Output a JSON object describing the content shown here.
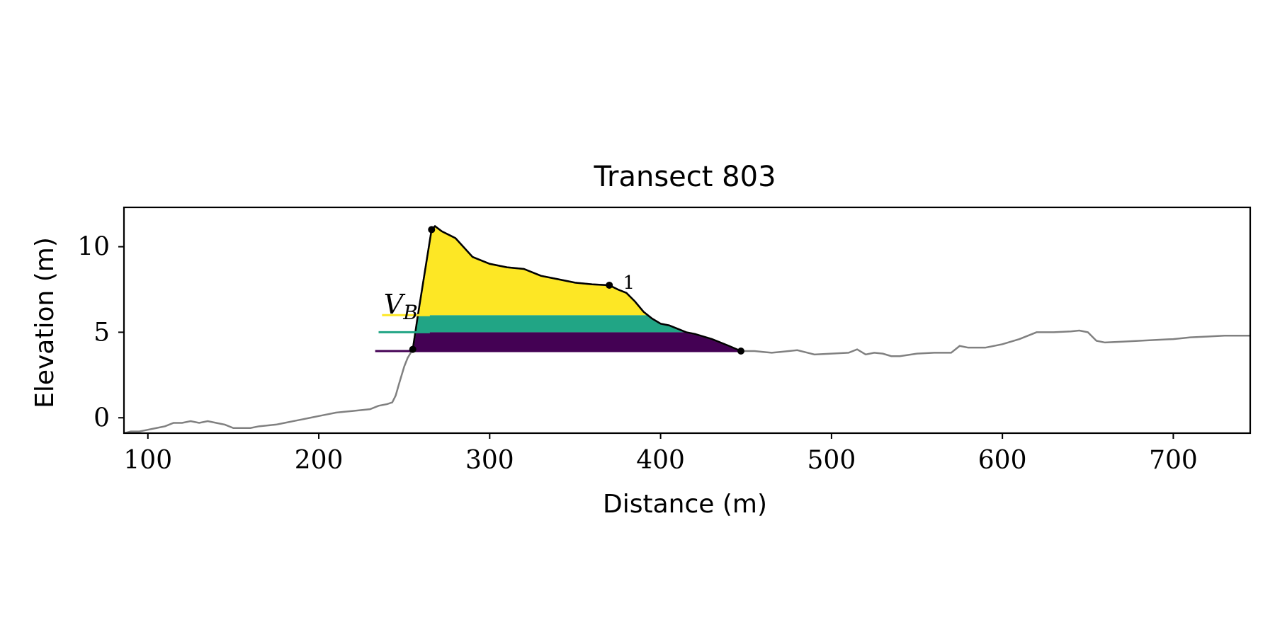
{
  "chart_data": {
    "type": "area",
    "title": "Transect 803",
    "xlabel": "Distance (m)",
    "ylabel": "Elevation (m)",
    "xlim": [
      86,
      745
    ],
    "ylim": [
      -0.9,
      12.3
    ],
    "xticks": [
      100,
      200,
      300,
      400,
      500,
      600,
      700
    ],
    "yticks": [
      0,
      5,
      10
    ],
    "grid": false,
    "legend": "none",
    "colors": {
      "profile": "#808080",
      "crest_line": "#000000",
      "band_low": "#440154",
      "band_mid": "#21a585",
      "band_high": "#fde725",
      "axis": "#000000"
    },
    "profile": {
      "x": [
        86,
        90,
        95,
        100,
        105,
        110,
        115,
        120,
        125,
        130,
        135,
        140,
        145,
        150,
        155,
        160,
        165,
        170,
        175,
        180,
        185,
        190,
        195,
        200,
        205,
        210,
        215,
        220,
        225,
        230,
        235,
        240,
        243,
        245,
        247,
        250,
        252,
        255,
        258,
        262,
        266,
        268,
        272,
        280,
        290,
        300,
        310,
        320,
        330,
        340,
        350,
        360,
        370,
        375,
        380,
        385,
        390,
        395,
        400,
        405,
        410,
        415,
        420,
        430,
        440,
        447,
        455,
        460,
        465,
        470,
        480,
        490,
        500,
        510,
        515,
        520,
        525,
        530,
        535,
        540,
        550,
        560,
        570,
        575,
        580,
        590,
        600,
        610,
        620,
        630,
        640,
        645,
        650,
        655,
        660,
        670,
        680,
        690,
        700,
        710,
        720,
        730,
        745
      ],
      "y": [
        -0.9,
        -0.8,
        -0.8,
        -0.7,
        -0.6,
        -0.5,
        -0.3,
        -0.3,
        -0.2,
        -0.3,
        -0.2,
        -0.3,
        -0.4,
        -0.6,
        -0.6,
        -0.6,
        -0.5,
        -0.45,
        -0.4,
        -0.3,
        -0.2,
        -0.1,
        0.0,
        0.1,
        0.2,
        0.3,
        0.35,
        0.4,
        0.45,
        0.5,
        0.7,
        0.8,
        0.9,
        1.3,
        2.0,
        3.0,
        3.5,
        4.0,
        6.0,
        8.5,
        11.0,
        11.2,
        10.9,
        10.5,
        9.4,
        9.0,
        8.8,
        8.7,
        8.3,
        8.1,
        7.9,
        7.8,
        7.75,
        7.5,
        7.3,
        6.8,
        6.2,
        5.8,
        5.5,
        5.4,
        5.2,
        5.0,
        4.9,
        4.6,
        4.2,
        3.9,
        3.9,
        3.85,
        3.8,
        3.85,
        3.95,
        3.7,
        3.75,
        3.8,
        4.0,
        3.7,
        3.8,
        3.75,
        3.6,
        3.6,
        3.75,
        3.8,
        3.8,
        4.2,
        4.1,
        4.1,
        4.3,
        4.6,
        5.0,
        5.0,
        5.05,
        5.1,
        5.0,
        4.5,
        4.4,
        4.45,
        4.5,
        4.55,
        4.6,
        4.7,
        4.75,
        4.8,
        4.8
      ]
    },
    "dune_section": {
      "x_start": 255,
      "x_end": 447
    },
    "bands": [
      {
        "from": 3.9,
        "to": 5.0,
        "color": "#440154"
      },
      {
        "from": 5.0,
        "to": 6.0,
        "color": "#21a585"
      },
      {
        "from": 6.0,
        "to": 12.0,
        "color": "#fde725"
      }
    ],
    "level_ticks": [
      {
        "y": 3.9,
        "x_start": 233,
        "color": "#440154"
      },
      {
        "y": 5.0,
        "x_start": 235,
        "color": "#21a585"
      },
      {
        "y": 6.0,
        "x_start": 237,
        "color": "#fde725"
      }
    ],
    "points": [
      {
        "x": 255,
        "y": 4.0
      },
      {
        "x": 266,
        "y": 11.0
      },
      {
        "x": 370,
        "y": 7.75
      },
      {
        "x": 447,
        "y": 3.9
      }
    ],
    "annotations": [
      {
        "text": "V",
        "sub": "B",
        "x": 238,
        "y": 6.1
      },
      {
        "text": "1",
        "x": 378,
        "y": 7.55
      }
    ]
  }
}
